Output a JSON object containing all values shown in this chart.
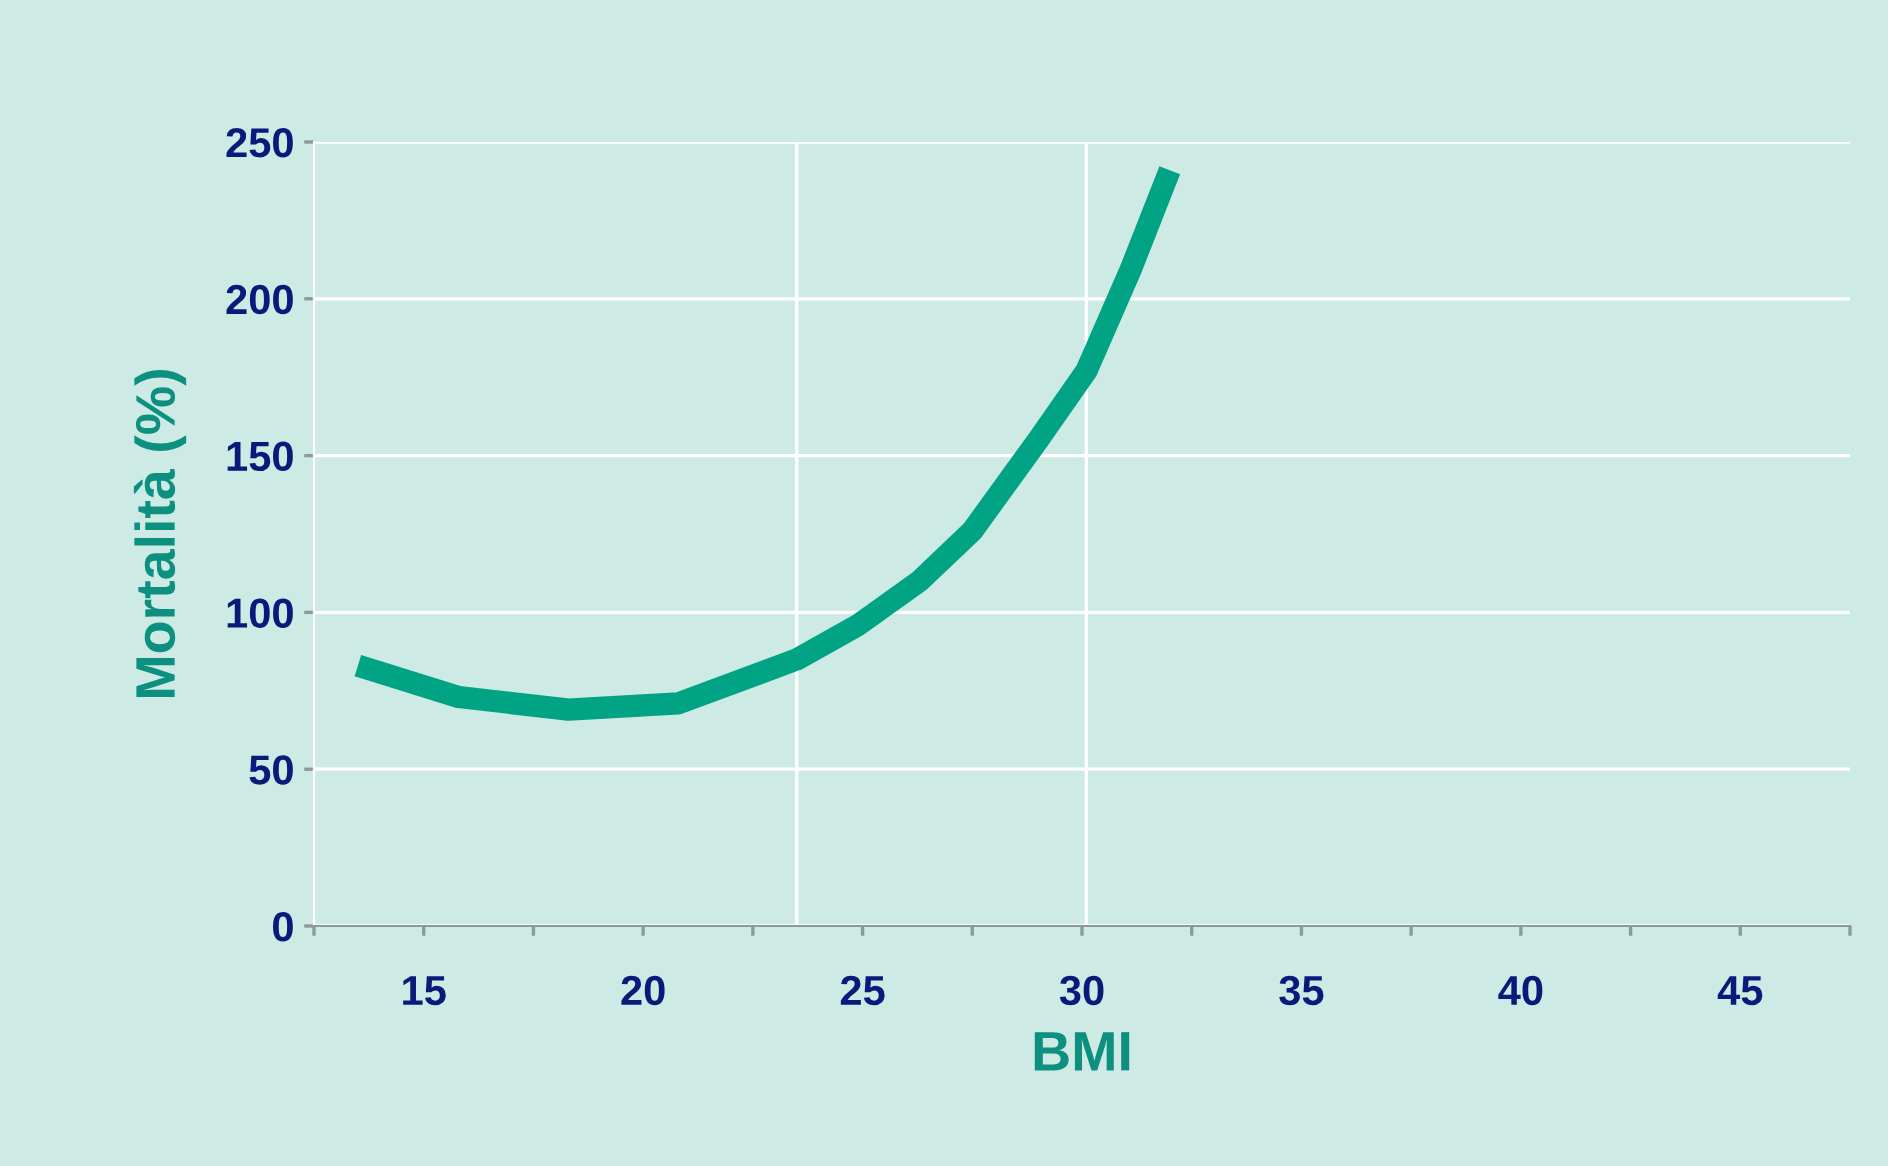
{
  "chart_data": {
    "type": "line",
    "xlabel": "BMI",
    "ylabel": "Mortalità (%)",
    "x": [
      13.5,
      15.8,
      18.3,
      20.8,
      23.5,
      24.9,
      26.3,
      27.5,
      29.0,
      30.1,
      31.1,
      32.0
    ],
    "series": [
      {
        "color": "#00a383",
        "values": [
          83,
          73,
          69,
          71,
          85,
          96,
          110,
          126,
          155,
          177,
          209,
          241
        ]
      }
    ],
    "xlim": [
      12.5,
      47.5
    ],
    "xticks": [
      {
        "value": 12.5,
        "label": null
      },
      15,
      {
        "value": 17.5,
        "label": null
      },
      20,
      {
        "value": 22.5,
        "label": null
      },
      25,
      {
        "value": 27.5,
        "label": null
      },
      30,
      {
        "value": 32.5,
        "label": null
      },
      35,
      {
        "value": 37.5,
        "label": null
      },
      40,
      {
        "value": 42.5,
        "label": null
      },
      45,
      {
        "value": 47.5,
        "label": null
      }
    ],
    "ylim": [
      0,
      250
    ],
    "yticks": [
      0,
      50,
      100,
      150,
      200,
      250
    ],
    "grid": "y",
    "marker": "none",
    "line_style": "solid",
    "ref_lines": [
      {
        "axis": "x",
        "value": 23.5,
        "color": "#ffffff"
      },
      {
        "axis": "x",
        "value": 30.1,
        "color": "#ffffff"
      }
    ]
  }
}
